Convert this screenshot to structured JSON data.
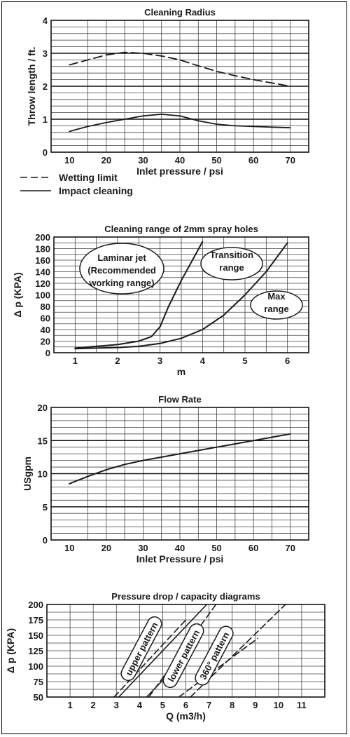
{
  "chart_data": [
    {
      "type": "line",
      "title": "Cleaning Radius",
      "xlabel": "Inlet pressure / psi",
      "ylabel": "Throw length / ft.",
      "xlim": [
        5,
        75
      ],
      "ylim": [
        0,
        4
      ],
      "xticks": [
        "10",
        "20",
        "30",
        "40",
        "50",
        "60",
        "70"
      ],
      "yticks": [
        "0",
        "1",
        "2",
        "3",
        "4"
      ],
      "grid": true,
      "legend_position": "bottom-left",
      "series": [
        {
          "name": "Wetting limit",
          "style": "dashed",
          "x": [
            10,
            15,
            20,
            25,
            30,
            35,
            40,
            45,
            50,
            55,
            60,
            65,
            70
          ],
          "y": [
            2.65,
            2.8,
            2.95,
            3.03,
            3.0,
            2.92,
            2.8,
            2.62,
            2.45,
            2.32,
            2.2,
            2.1,
            2.0
          ]
        },
        {
          "name": "Impact cleaning",
          "style": "solid",
          "x": [
            10,
            15,
            20,
            25,
            30,
            35,
            40,
            45,
            50,
            55,
            60,
            65,
            70
          ],
          "y": [
            0.63,
            0.78,
            0.9,
            1.0,
            1.1,
            1.15,
            1.1,
            0.95,
            0.85,
            0.8,
            0.78,
            0.76,
            0.74
          ]
        }
      ]
    },
    {
      "type": "line",
      "title": "Cleaning range of 2mm spray holes",
      "xlabel": "m",
      "ylabel": "Δ p (KPA)",
      "xlim": [
        0.5,
        6.5
      ],
      "ylim": [
        0,
        200
      ],
      "xticks": [
        "1",
        "2",
        "3",
        "4",
        "5",
        "6"
      ],
      "yticks": [
        "0",
        "20",
        "40",
        "60",
        "80",
        "100",
        "120",
        "140",
        "160",
        "180",
        "200"
      ],
      "grid": true,
      "series": [
        {
          "x": [
            1,
            1.5,
            2,
            2.5,
            2.8,
            3,
            3.2,
            3.5,
            3.8,
            4
          ],
          "y": [
            8,
            11,
            14,
            20,
            28,
            45,
            80,
            125,
            165,
            192
          ]
        },
        {
          "x": [
            1,
            1.5,
            2,
            2.5,
            3,
            3.5,
            4,
            4.5,
            5,
            5.5,
            6
          ],
          "y": [
            7,
            8,
            9,
            11,
            16,
            25,
            40,
            65,
            100,
            140,
            190
          ]
        }
      ],
      "annotations": [
        {
          "lines": [
            "Laminar jet",
            "(Recommended",
            "working range)"
          ]
        },
        {
          "lines": [
            "Transition",
            "range"
          ]
        },
        {
          "lines": [
            "Max",
            "range"
          ]
        }
      ]
    },
    {
      "type": "line",
      "title": "Flow Rate",
      "xlabel": "Inlet Pressure / psi",
      "ylabel": "USgpm",
      "xlim": [
        5,
        75
      ],
      "ylim": [
        0,
        20
      ],
      "xticks": [
        "10",
        "20",
        "30",
        "40",
        "50",
        "60",
        "70"
      ],
      "yticks": [
        "0",
        "5",
        "10",
        "15",
        "20"
      ],
      "grid": true,
      "series": [
        {
          "x": [
            10,
            15,
            20,
            25,
            30,
            35,
            40,
            45,
            50,
            55,
            60,
            65,
            70
          ],
          "y": [
            8.5,
            9.6,
            10.6,
            11.4,
            12.0,
            12.5,
            13.0,
            13.5,
            14.0,
            14.5,
            15.0,
            15.5,
            16.0
          ]
        }
      ]
    },
    {
      "type": "line",
      "title": "Pressure drop / capacity diagrams",
      "xlabel": "Q (m3/h)",
      "ylabel": "Δ p (KPA)",
      "xlim": [
        0,
        12
      ],
      "ylim": [
        50,
        200
      ],
      "xticks": [
        "1",
        "2",
        "3",
        "4",
        "5",
        "6",
        "7",
        "8",
        "9",
        "10",
        "11"
      ],
      "yticks": [
        "50",
        "75",
        "100",
        "125",
        "150",
        "175",
        "200"
      ],
      "grid": true,
      "series": [
        {
          "label": "upper pattern",
          "style": "solid",
          "x": [
            3.1,
            6.9
          ],
          "y": [
            50,
            200
          ]
        },
        {
          "label": "upper pattern",
          "style": "dashed",
          "x": [
            2.9,
            6.0
          ],
          "y": [
            50,
            175
          ]
        },
        {
          "label": "lower pattern",
          "style": "solid",
          "x": [
            4.3,
            6.5
          ],
          "y": [
            50,
            135
          ]
        },
        {
          "label": "lower pattern",
          "style": "dashed",
          "x": [
            4.4,
            7.3
          ],
          "y": [
            50,
            200
          ]
        },
        {
          "label": "360° pattern",
          "style": "dashed",
          "x": [
            5.7,
            9.1
          ],
          "y": [
            50,
            145
          ]
        },
        {
          "label": "360° pattern",
          "style": "dashed",
          "x": [
            6.2,
            10.3
          ],
          "y": [
            50,
            200
          ]
        }
      ],
      "annotations": [
        {
          "lines": [
            "upper pattern"
          ]
        },
        {
          "lines": [
            "lower pattern"
          ]
        },
        {
          "lines": [
            "360° pattern"
          ]
        }
      ]
    }
  ]
}
